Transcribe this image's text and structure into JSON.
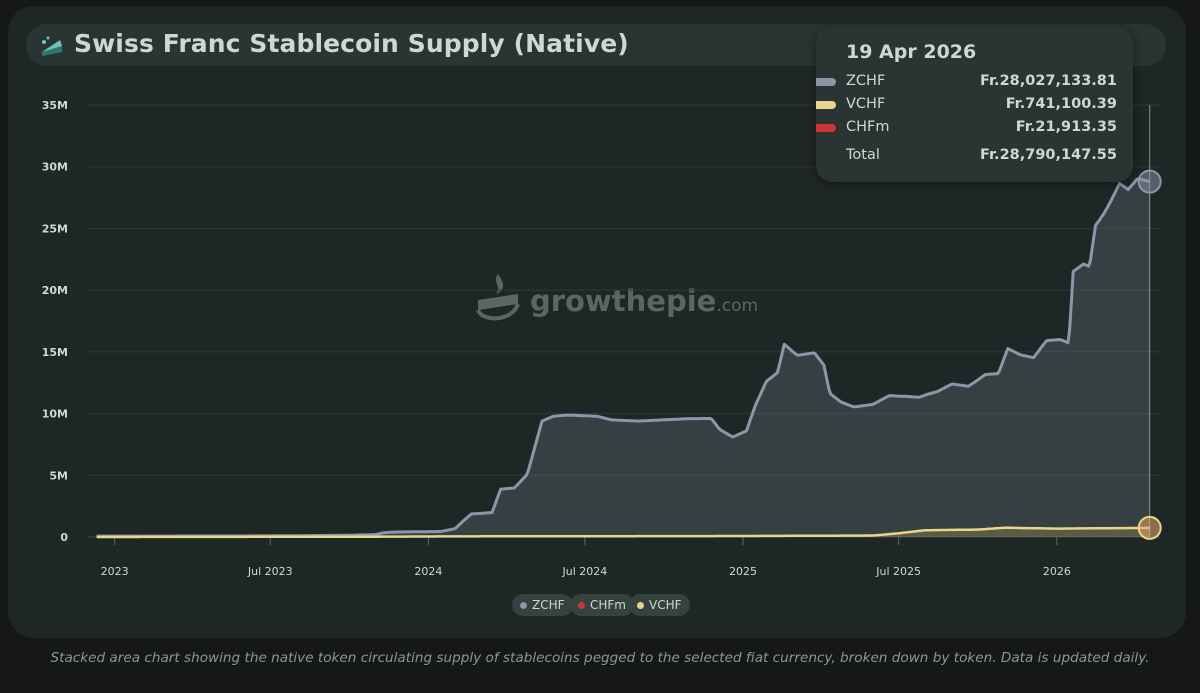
{
  "title": "Swiss Franc Stablecoin Supply (Native)",
  "watermark": {
    "brand": "growthepie",
    "suffix": ".com"
  },
  "tooltip": {
    "date": "19 Apr 2026",
    "rows": [
      {
        "name": "ZCHF",
        "value": "Fr.28,027,133.81",
        "color": "#8a97a8"
      },
      {
        "name": "VCHF",
        "value": "Fr.741,100.39",
        "color": "#e8d58c"
      },
      {
        "name": "CHFm",
        "value": "Fr.21,913.35",
        "color": "#d0333c"
      }
    ],
    "total_label": "Total",
    "total_value": "Fr.28,790,147.55"
  },
  "legend": [
    {
      "label": "ZCHF",
      "color": "#8a97a8"
    },
    {
      "label": "CHFm",
      "color": "#d0333c"
    },
    {
      "label": "VCHF",
      "color": "#e8d58c"
    }
  ],
  "caption": "Stacked area chart showing the native token circulating supply of stablecoins pegged to the selected fiat currency, broken down by token. Data is updated daily.",
  "chart_data": {
    "type": "area",
    "stacked": true,
    "ylim": [
      0,
      35000000
    ],
    "yticks": [
      0,
      5000000,
      10000000,
      15000000,
      20000000,
      25000000,
      30000000,
      35000000
    ],
    "ytick_labels": [
      "0",
      "5M",
      "10M",
      "15M",
      "20M",
      "25M",
      "30M",
      "35M"
    ],
    "xlim": [
      "2022-12-01",
      "2026-05-01"
    ],
    "xticks": [
      "2023-01-01",
      "2023-07-01",
      "2024-01-01",
      "2024-07-01",
      "2025-01-01",
      "2025-07-01",
      "2026-01-01"
    ],
    "xtick_labels": [
      "2023",
      "Jul 2023",
      "2024",
      "Jul 2024",
      "2025",
      "Jul 2025",
      "2026"
    ],
    "grid": true,
    "legend_position": "bottom-center",
    "series": [
      {
        "name": "ZCHF",
        "color": "#8a97a8",
        "points": [
          [
            "2022-12-01",
            0.05
          ],
          [
            "2023-03-01",
            0.05
          ],
          [
            "2023-06-01",
            0.05
          ],
          [
            "2023-08-01",
            0.07
          ],
          [
            "2023-10-01",
            0.1
          ],
          [
            "2023-11-01",
            0.15
          ],
          [
            "2023-11-10",
            0.3
          ],
          [
            "2023-11-25",
            0.35
          ],
          [
            "2024-01-15",
            0.38
          ],
          [
            "2024-02-01",
            0.6
          ],
          [
            "2024-02-10",
            1.2
          ],
          [
            "2024-02-20",
            1.8
          ],
          [
            "2024-03-15",
            1.9
          ],
          [
            "2024-03-25",
            3.8
          ],
          [
            "2024-04-10",
            3.9
          ],
          [
            "2024-04-25",
            5.0
          ],
          [
            "2024-05-05",
            7.5
          ],
          [
            "2024-05-12",
            9.3
          ],
          [
            "2024-05-25",
            9.7
          ],
          [
            "2024-06-10",
            9.8
          ],
          [
            "2024-07-15",
            9.7
          ],
          [
            "2024-08-01",
            9.4
          ],
          [
            "2024-09-01",
            9.3
          ],
          [
            "2024-10-01",
            9.4
          ],
          [
            "2024-11-01",
            9.5
          ],
          [
            "2024-11-25",
            9.5
          ],
          [
            "2024-12-05",
            8.6
          ],
          [
            "2024-12-20",
            8.0
          ],
          [
            "2025-01-05",
            8.5
          ],
          [
            "2025-01-15",
            10.5
          ],
          [
            "2025-01-28",
            12.5
          ],
          [
            "2025-02-10",
            13.2
          ],
          [
            "2025-02-18",
            15.5
          ],
          [
            "2025-03-05",
            14.6
          ],
          [
            "2025-03-25",
            14.8
          ],
          [
            "2025-04-05",
            13.8
          ],
          [
            "2025-04-12",
            11.5
          ],
          [
            "2025-04-25",
            10.8
          ],
          [
            "2025-05-10",
            10.4
          ],
          [
            "2025-06-01",
            10.6
          ],
          [
            "2025-06-20",
            11.2
          ],
          [
            "2025-07-10",
            11.0
          ],
          [
            "2025-07-25",
            10.8
          ],
          [
            "2025-08-15",
            11.2
          ],
          [
            "2025-09-01",
            11.8
          ],
          [
            "2025-09-20",
            11.6
          ],
          [
            "2025-10-10",
            12.5
          ],
          [
            "2025-10-25",
            12.5
          ],
          [
            "2025-11-05",
            14.5
          ],
          [
            "2025-11-20",
            14.0
          ],
          [
            "2025-12-05",
            13.8
          ],
          [
            "2025-12-20",
            15.2
          ],
          [
            "2026-01-05",
            15.3
          ],
          [
            "2026-01-15",
            15.0
          ],
          [
            "2026-01-20",
            20.8
          ],
          [
            "2026-02-01",
            21.4
          ],
          [
            "2026-02-08",
            21.2
          ],
          [
            "2026-02-15",
            24.5
          ],
          [
            "2026-02-25",
            25.5
          ],
          [
            "2026-03-05",
            26.5
          ],
          [
            "2026-03-15",
            27.9
          ],
          [
            "2026-03-25",
            27.4
          ],
          [
            "2026-04-05",
            28.3
          ],
          [
            "2026-04-19",
            28.03
          ]
        ],
        "unit": "millions CHF"
      },
      {
        "name": "CHFm",
        "color": "#d0333c",
        "points": [
          [
            "2022-12-01",
            0.02
          ],
          [
            "2026-04-19",
            0.022
          ]
        ],
        "unit": "millions CHF"
      },
      {
        "name": "VCHF",
        "color": "#e8d58c",
        "points": [
          [
            "2022-12-01",
            0.0
          ],
          [
            "2023-10-01",
            0.02
          ],
          [
            "2024-02-01",
            0.05
          ],
          [
            "2025-01-01",
            0.08
          ],
          [
            "2025-06-01",
            0.12
          ],
          [
            "2025-07-01",
            0.3
          ],
          [
            "2025-08-01",
            0.55
          ],
          [
            "2025-10-01",
            0.6
          ],
          [
            "2025-11-01",
            0.75
          ],
          [
            "2026-01-01",
            0.68
          ],
          [
            "2026-04-19",
            0.74
          ]
        ],
        "unit": "millions CHF"
      }
    ]
  }
}
